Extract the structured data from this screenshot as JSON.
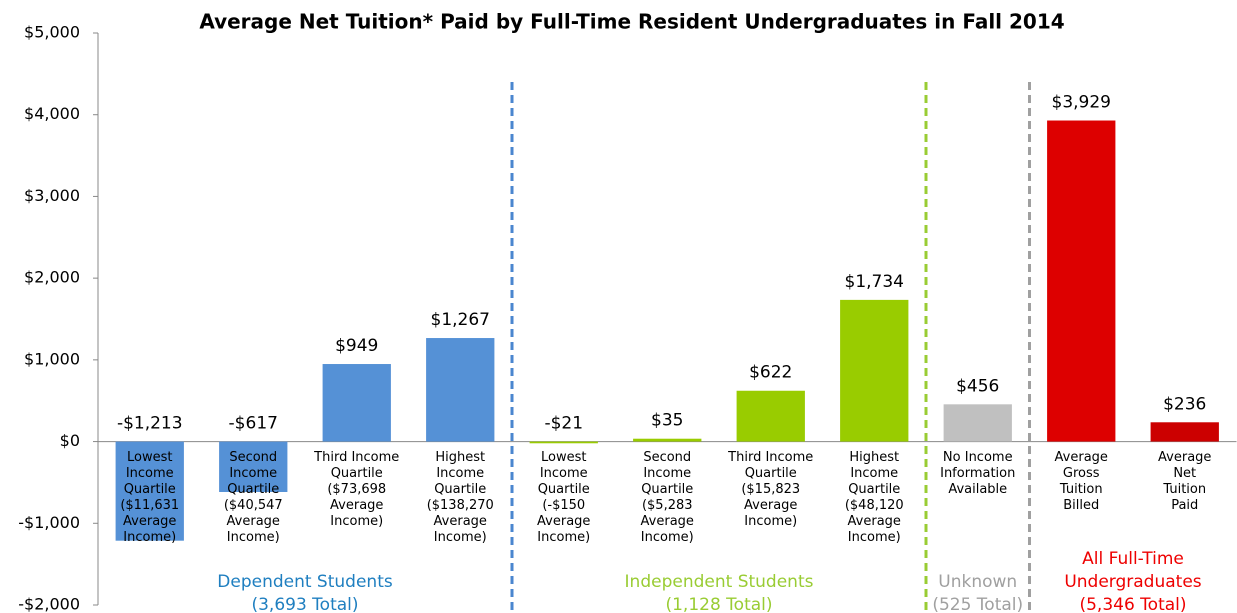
{
  "chart_data": {
    "type": "bar",
    "title": "Average Net Tuition* Paid by Full-Time Resident Undergraduates in Fall 2014",
    "categories": [
      "Lowest\nIncome\nQuartile\n($11,631\nAverage\nIncome)",
      "Second\nIncome\nQuartile\n($40,547\nAverage\nIncome)",
      "Third Income\nQuartile\n($73,698\nAverage\nIncome)",
      "Highest\nIncome\nQuartile\n($138,270\nAverage\nIncome)",
      "Lowest\nIncome\nQuartile\n(-$150\nAverage\nIncome)",
      "Second\nIncome\nQuartile\n($5,283\nAverage\nIncome)",
      "Third Income\nQuartile\n($15,823\nAverage\nIncome)",
      "Highest\nIncome\nQuartile\n($48,120\nAverage\nIncome)",
      "No Income\nInformation\nAvailable",
      "Average\nGross\nTuition\nBilled",
      "Average\nNet\nTuition\nPaid"
    ],
    "values": [
      -1213,
      -617,
      949,
      1267,
      -21,
      35,
      622,
      1734,
      456,
      3929,
      236
    ],
    "value_labels": [
      "-$1,213",
      "-$617",
      "$949",
      "$1,267",
      "-$21",
      "$35",
      "$622",
      "$1,734",
      "$456",
      "$3,929",
      "$236"
    ],
    "colors": [
      "#5591d6",
      "#5591d6",
      "#5591d6",
      "#5591d6",
      "#99cc00",
      "#99cc00",
      "#99cc00",
      "#99cc00",
      "#c0c0c0",
      "#dd0000",
      "#cc0000"
    ],
    "ylim": [
      -2000,
      5000
    ],
    "yticks": [
      {
        "value": -2000,
        "label": "-$2,000"
      },
      {
        "value": -1000,
        "label": "-$1,000"
      },
      {
        "value": 0,
        "label": "$0"
      },
      {
        "value": 1000,
        "label": "$1,000"
      },
      {
        "value": 2000,
        "label": "$2,000"
      },
      {
        "value": 3000,
        "label": "$3,000"
      },
      {
        "value": 4000,
        "label": "$4,000"
      },
      {
        "value": 5000,
        "label": "$5,000"
      }
    ],
    "groups": [
      {
        "label": "Dependent Students\n(3,693 Total)",
        "color": "#1f7fc0"
      },
      {
        "label": "Independent Students\n(1,128 Total)",
        "color": "#99cc33"
      },
      {
        "label": "Unknown\n(525 Total)",
        "color": "#a0a0a0"
      },
      {
        "label": "All Full-Time\nUndergraduates\n(5,346 Total)",
        "color": "#ee0000"
      }
    ]
  }
}
